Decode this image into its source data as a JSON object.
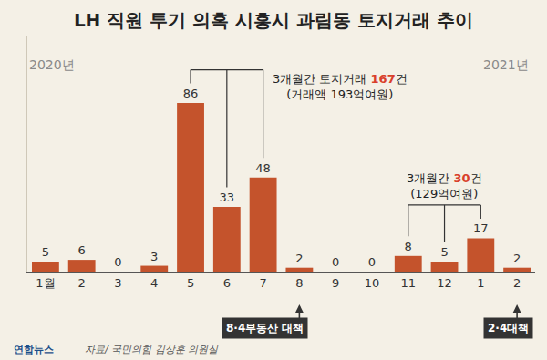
{
  "chart_data": {
    "type": "bar",
    "title": "LH 직원 투기 의혹 시흥시 과림동 토지거래 추이",
    "categories": [
      "1월",
      "2",
      "3",
      "4",
      "5",
      "6",
      "7",
      "8",
      "9",
      "10",
      "11",
      "12",
      "1",
      "2"
    ],
    "values": [
      5,
      6,
      0,
      3,
      86,
      33,
      48,
      2,
      0,
      0,
      8,
      5,
      17,
      2
    ],
    "color": "#c4532c",
    "ylim": [
      0,
      120
    ],
    "grid": false,
    "data_labels": true,
    "tick_labels": "x",
    "year_labels": [
      "2020년",
      "2021년"
    ],
    "annotations": [
      {
        "lines": [
          [
            {
              "text": "3개월간 토지거래 "
            },
            {
              "text": "167",
              "color": "#d9402b"
            },
            {
              "text": "건"
            }
          ],
          [
            {
              "text": "(거래액 193억여원)"
            }
          ]
        ]
      },
      {
        "lines": [
          [
            {
              "text": "3개월간 "
            },
            {
              "text": "30",
              "color": "#d9402b"
            },
            {
              "text": "건"
            }
          ],
          [
            {
              "text": "(129억여원)"
            }
          ]
        ]
      }
    ],
    "events": [
      {
        "text": "8·4부동산 대책"
      },
      {
        "text": "2·4대책"
      }
    ],
    "credit": "연합뉴스",
    "source": "자료/ 국민의힘 김상훈 의원실"
  }
}
